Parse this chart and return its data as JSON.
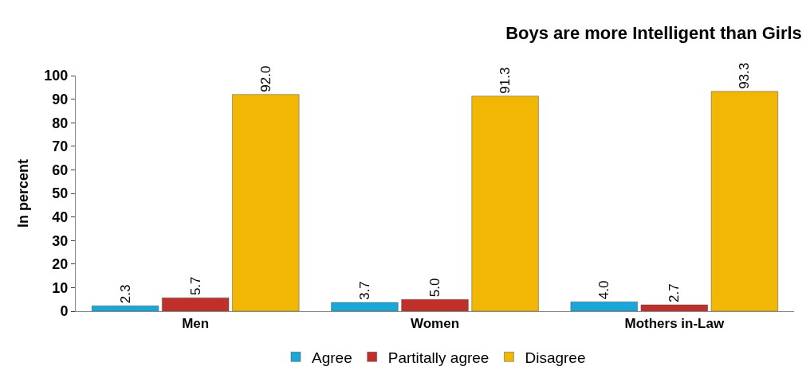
{
  "chart_data": {
    "type": "bar",
    "title": "Boys are more Intelligent than Girls",
    "ylabel": "In percent",
    "categories": [
      "Men",
      "Women",
      "Mothers in-Law"
    ],
    "series": [
      {
        "name": "Agree",
        "color": "#1aa7d8",
        "values": [
          2.3,
          3.7,
          4.0
        ],
        "value_labels": [
          "2.3",
          "3.7",
          "4.0"
        ]
      },
      {
        "name": "Partitally agree",
        "color": "#c0302a",
        "values": [
          5.7,
          5.0,
          2.7
        ],
        "value_labels": [
          "5.7",
          "5.0",
          "2.7"
        ]
      },
      {
        "name": "Disagree",
        "color": "#f2b705",
        "values": [
          92.0,
          91.3,
          93.3
        ],
        "value_labels": [
          "92.0",
          "91.3",
          "93.3"
        ]
      }
    ],
    "ylim": [
      0,
      100
    ],
    "yticks": [
      0,
      10,
      20,
      30,
      40,
      50,
      60,
      70,
      80,
      90,
      100
    ],
    "legend": "bottom"
  }
}
